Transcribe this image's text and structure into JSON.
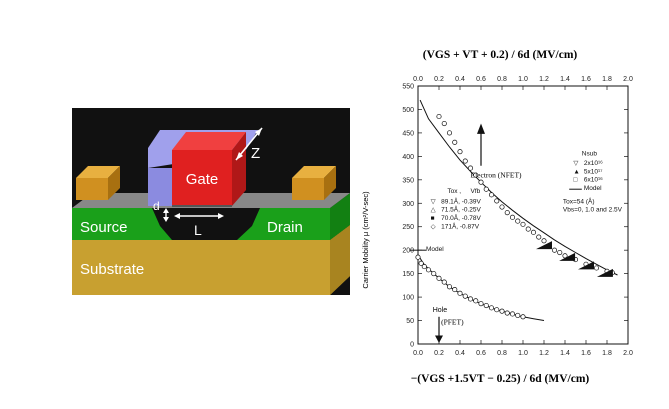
{
  "device": {
    "gate_label": "Gate",
    "source_label": "Source",
    "drain_label": "Drain",
    "substrate_label": "Substrate",
    "dim_z": "Z",
    "dim_d": "d",
    "dim_l": "L",
    "colors": {
      "background": "#111111",
      "gate": "#e02020",
      "spacer": "#8b8be0",
      "source_drain": "#1aa01a",
      "substrate": "#c8a030",
      "contact": "#d09020",
      "oxide": "#888888"
    }
  },
  "chart_data": {
    "type": "scatter",
    "top_axis_title": "(V<sub>GS</sub> + V<sub>T</sub> + 0.2) / 6d (MV/cm)",
    "top_axis_title_text": "(VGS + VT + 0.2) / 6d (MV/cm)",
    "bottom_axis_title_text": "−(VGS +1.5VT − 0.25) / 6d (MV/cm)",
    "ylabel": "Carrier Mobility μ  (cm²/V-sec)",
    "xlim": [
      0,
      2.0
    ],
    "ylim": [
      0,
      550
    ],
    "x_ticks": [
      "0.0",
      "0.2",
      "0.4",
      "0.6",
      "0.8",
      "1.0",
      "1.2",
      "1.4",
      "1.6",
      "1.8",
      "2.0"
    ],
    "y_ticks": [
      "0",
      "50",
      "100",
      "150",
      "200",
      "250",
      "300",
      "350",
      "400",
      "450",
      "500",
      "550"
    ],
    "annotations": {
      "electron": "Electron (NFET)",
      "hole": "Hole",
      "pfet": "(PFET)",
      "model_left": "Model",
      "tox_header": "Tox ,",
      "vfb_header": "Vfb",
      "tox_rows": [
        "89.1Å, -0.39V",
        "71.5Å, -0.25V",
        "70.0Å, -0.78V",
        "171Å, -0.87V"
      ],
      "nsub_header": "Nsub",
      "nsub_rows": [
        "2x10¹⁶",
        "5x10¹⁷",
        "6x10¹⁶"
      ],
      "model_right": "Model",
      "tox_note": "Tox=54 (Å)",
      "vbs_note": "Vbs=0, 1.0 and 2.5V"
    },
    "series": [
      {
        "name": "Electron model",
        "x": [
          0.02,
          0.1,
          0.2,
          0.3,
          0.4,
          0.5,
          0.6,
          0.7,
          0.8,
          0.9,
          1.0,
          1.1,
          1.2,
          1.3,
          1.4,
          1.5,
          1.6,
          1.7,
          1.8,
          1.9
        ],
        "y": [
          520,
          480,
          450,
          420,
          392,
          368,
          345,
          323,
          303,
          285,
          268,
          252,
          237,
          222,
          208,
          195,
          182,
          170,
          158,
          147
        ]
      },
      {
        "name": "Electron data",
        "x": [
          0.2,
          0.25,
          0.3,
          0.35,
          0.4,
          0.45,
          0.5,
          0.55,
          0.6,
          0.65,
          0.7,
          0.75,
          0.8,
          0.85,
          0.9,
          0.95,
          1.0,
          1.05,
          1.1,
          1.15,
          1.2,
          1.25,
          1.3,
          1.35,
          1.4,
          1.5,
          1.6,
          1.7,
          1.8,
          1.85
        ],
        "y": [
          485,
          470,
          450,
          430,
          410,
          390,
          375,
          360,
          345,
          330,
          318,
          305,
          292,
          280,
          270,
          262,
          255,
          245,
          238,
          228,
          220,
          210,
          200,
          195,
          188,
          180,
          170,
          162,
          155,
          152
        ]
      },
      {
        "name": "Hole model",
        "x": [
          0.0,
          0.05,
          0.1,
          0.2,
          0.3,
          0.4,
          0.5,
          0.6,
          0.7,
          0.8,
          0.9,
          1.0,
          1.1,
          1.2
        ],
        "y": [
          190,
          172,
          160,
          140,
          122,
          108,
          96,
          86,
          77,
          70,
          64,
          58,
          54,
          50
        ]
      },
      {
        "name": "Hole data",
        "x": [
          0.0,
          0.03,
          0.06,
          0.1,
          0.15,
          0.2,
          0.25,
          0.3,
          0.35,
          0.4,
          0.45,
          0.5,
          0.55,
          0.6,
          0.65,
          0.7,
          0.75,
          0.8,
          0.85,
          0.9,
          0.95,
          1.0
        ],
        "y": [
          185,
          172,
          165,
          158,
          150,
          140,
          132,
          122,
          116,
          108,
          102,
          96,
          92,
          86,
          82,
          77,
          73,
          70,
          66,
          64,
          61,
          58
        ]
      }
    ]
  }
}
